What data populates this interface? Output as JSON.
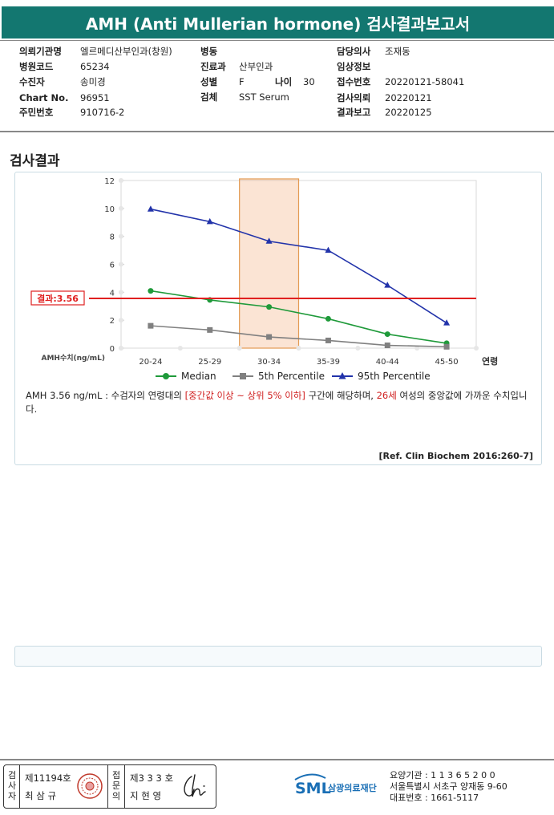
{
  "report": {
    "title": "AMH (Anti Mullerian hormone) 검사결과보고서"
  },
  "patient_info": {
    "col1": [
      {
        "label": "의뢰기관명",
        "value": "엘르메디산부인과(창원)"
      },
      {
        "label": "병원코드",
        "value": "65234"
      },
      {
        "label": "수진자",
        "value": "송미경"
      },
      {
        "label": "Chart No.",
        "value": "96951"
      },
      {
        "label": "주민번호",
        "value": "910716-2"
      }
    ],
    "col2": [
      {
        "label": "병동",
        "value": ""
      },
      {
        "label": "진료과",
        "value": "산부인과"
      },
      {
        "label": "성별",
        "value": "F"
      },
      {
        "label": "검체",
        "value": "SST Serum"
      }
    ],
    "age": {
      "label": "나이",
      "value": "30"
    },
    "col3": [
      {
        "label": "담당의사",
        "value": "조재동"
      },
      {
        "label": "임상정보",
        "value": ""
      },
      {
        "label": "접수번호",
        "value": "20220121-58041"
      },
      {
        "label": "검사의뢰",
        "value": "20220121"
      },
      {
        "label": "결과보고",
        "value": "20220125"
      }
    ]
  },
  "section": {
    "title": "검사결과"
  },
  "chart_data": {
    "type": "line",
    "categories": [
      "20-24",
      "25-29",
      "30-34",
      "35-39",
      "40-44",
      "45-50"
    ],
    "xlabel": "연령",
    "ylabel": "AMH수치(ng/mL)",
    "ylim": [
      0,
      12
    ],
    "yticks": [
      0,
      2,
      4,
      6,
      8,
      10,
      12
    ],
    "series": [
      {
        "name": "Median",
        "color": "#1f9a3a",
        "marker": "circle",
        "values": [
          4.1,
          3.45,
          2.95,
          2.1,
          1.0,
          0.35
        ]
      },
      {
        "name": "5th Percentile",
        "color": "#808080",
        "marker": "square",
        "values": [
          1.6,
          1.3,
          0.8,
          0.55,
          0.2,
          0.1
        ]
      },
      {
        "name": "95th Percentile",
        "color": "#2233aa",
        "marker": "triangle",
        "values": [
          9.95,
          9.05,
          7.65,
          7.0,
          4.5,
          1.8
        ]
      }
    ],
    "result_line": {
      "value": 3.56,
      "label": "결과:3.56",
      "color": "#e02020"
    },
    "highlight_band": {
      "category": "30-34",
      "color": "#f4b183"
    },
    "legend_position": "bottom"
  },
  "description": {
    "prefix": "AMH  3.56 ng/mL : 수검자의 연령대의 ",
    "highlight1": "[중간값 이상 ~ 상위 5% 이하]",
    "middle": " 구간에 해당하며, ",
    "highlight2": "26세",
    "suffix": " 여성의 중앙값에 가까운 수치입니다."
  },
  "reference": "[Ref. Clin Biochem 2016:260-7]",
  "footer": {
    "inspector": {
      "vertical": [
        "검",
        "사",
        "자"
      ],
      "license": "제11194호",
      "name": "최 삼 규"
    },
    "confirmer": {
      "vertical": [
        "접",
        "문",
        "의"
      ],
      "license": "제3 3 3 호",
      "name": "지 현 영"
    },
    "org_logo": "SML",
    "org_name": "삼광의료재단",
    "address_lines": [
      "요양기관 : 1 1 3 6 5 2 0 0",
      "서울특별시 서초구 양재동 9-60",
      "대표번호 : 1661-5117"
    ]
  }
}
